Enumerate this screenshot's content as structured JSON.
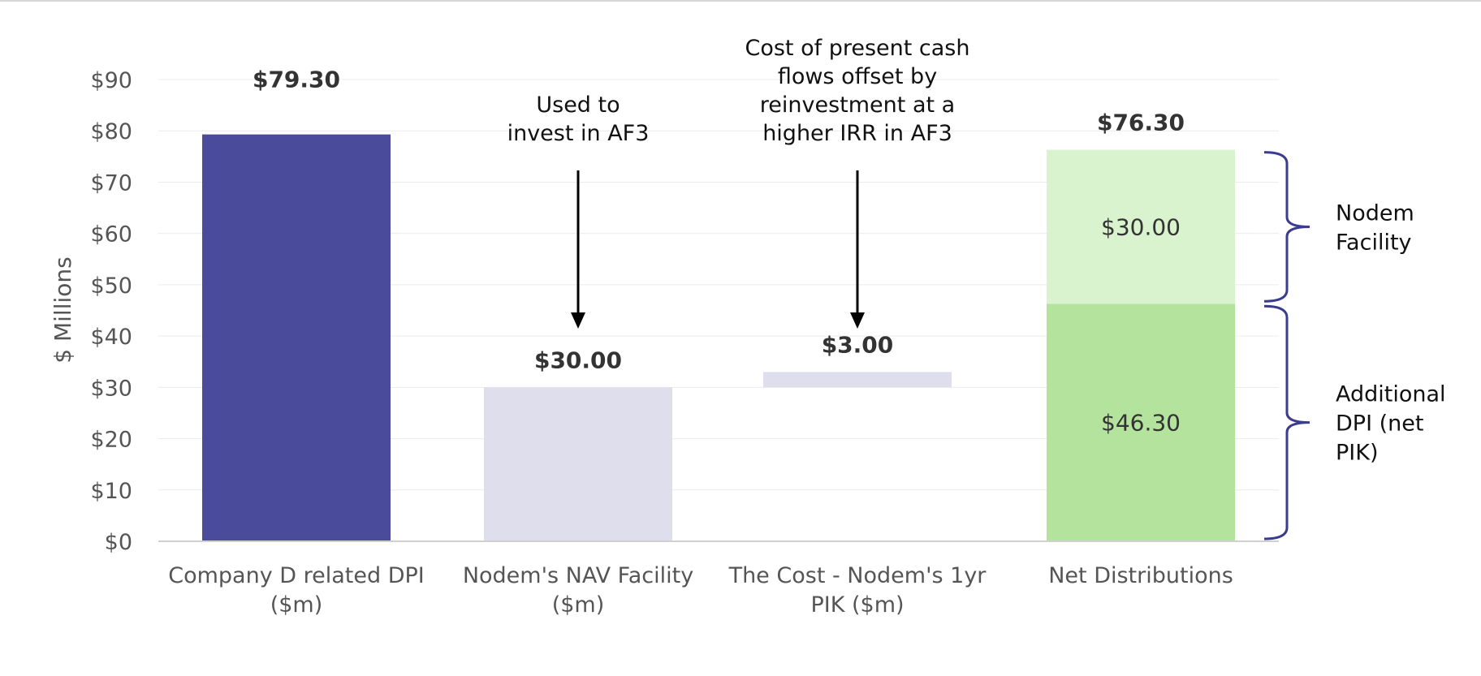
{
  "chart_data": {
    "type": "bar",
    "ylabel": "$ Millions",
    "ylim": [
      0,
      90
    ],
    "ytick_step": 10,
    "yticks": [
      "$0",
      "$10",
      "$20",
      "$30",
      "$40",
      "$50",
      "$60",
      "$70",
      "$80",
      "$90"
    ],
    "grid": true,
    "categories": [
      [
        "Company D related DPI",
        "($m)"
      ],
      [
        "Nodem's NAV Facility",
        "($m)"
      ],
      [
        "The Cost - Nodem's 1yr",
        "PIK ($m)"
      ],
      [
        "Net Distributions",
        ""
      ]
    ],
    "bars": [
      {
        "category": 0,
        "segments": [
          {
            "base": 0,
            "value": 79.3,
            "color": "#4b4b9b"
          }
        ],
        "total_label": "$79.30"
      },
      {
        "category": 1,
        "segments": [
          {
            "base": 0,
            "value": 30.0,
            "color": "#dfdeed"
          }
        ],
        "total_label": "$30.00"
      },
      {
        "category": 2,
        "segments": [
          {
            "base": 30.0,
            "value": 3.0,
            "color": "#dfdeed"
          }
        ],
        "total_label": "$3.00"
      },
      {
        "category": 3,
        "segments": [
          {
            "base": 0,
            "value": 46.3,
            "color": "#b4e39e",
            "label": "$46.30"
          },
          {
            "base": 46.3,
            "value": 30.0,
            "color": "#d9f3cf",
            "label": "$30.00"
          }
        ],
        "total_label": "$76.30"
      }
    ],
    "annotations": [
      {
        "category": 1,
        "lines": [
          "Used to",
          "invest in AF3"
        ]
      },
      {
        "category": 2,
        "lines": [
          "Cost of present cash",
          "flows offset by",
          "reinvestment at a",
          "higher IRR in AF3"
        ]
      }
    ],
    "braces": [
      {
        "from": 46.3,
        "to": 76.3,
        "lines": [
          "Nodem",
          "Facility"
        ]
      },
      {
        "from": 0,
        "to": 46.3,
        "lines": [
          "Additional",
          "DPI (net",
          "PIK)"
        ]
      }
    ],
    "colors": {
      "grid": "#ececec",
      "axis": "#d0d0d0",
      "brace": "#3b3b8f",
      "arrow": "#000000"
    }
  }
}
